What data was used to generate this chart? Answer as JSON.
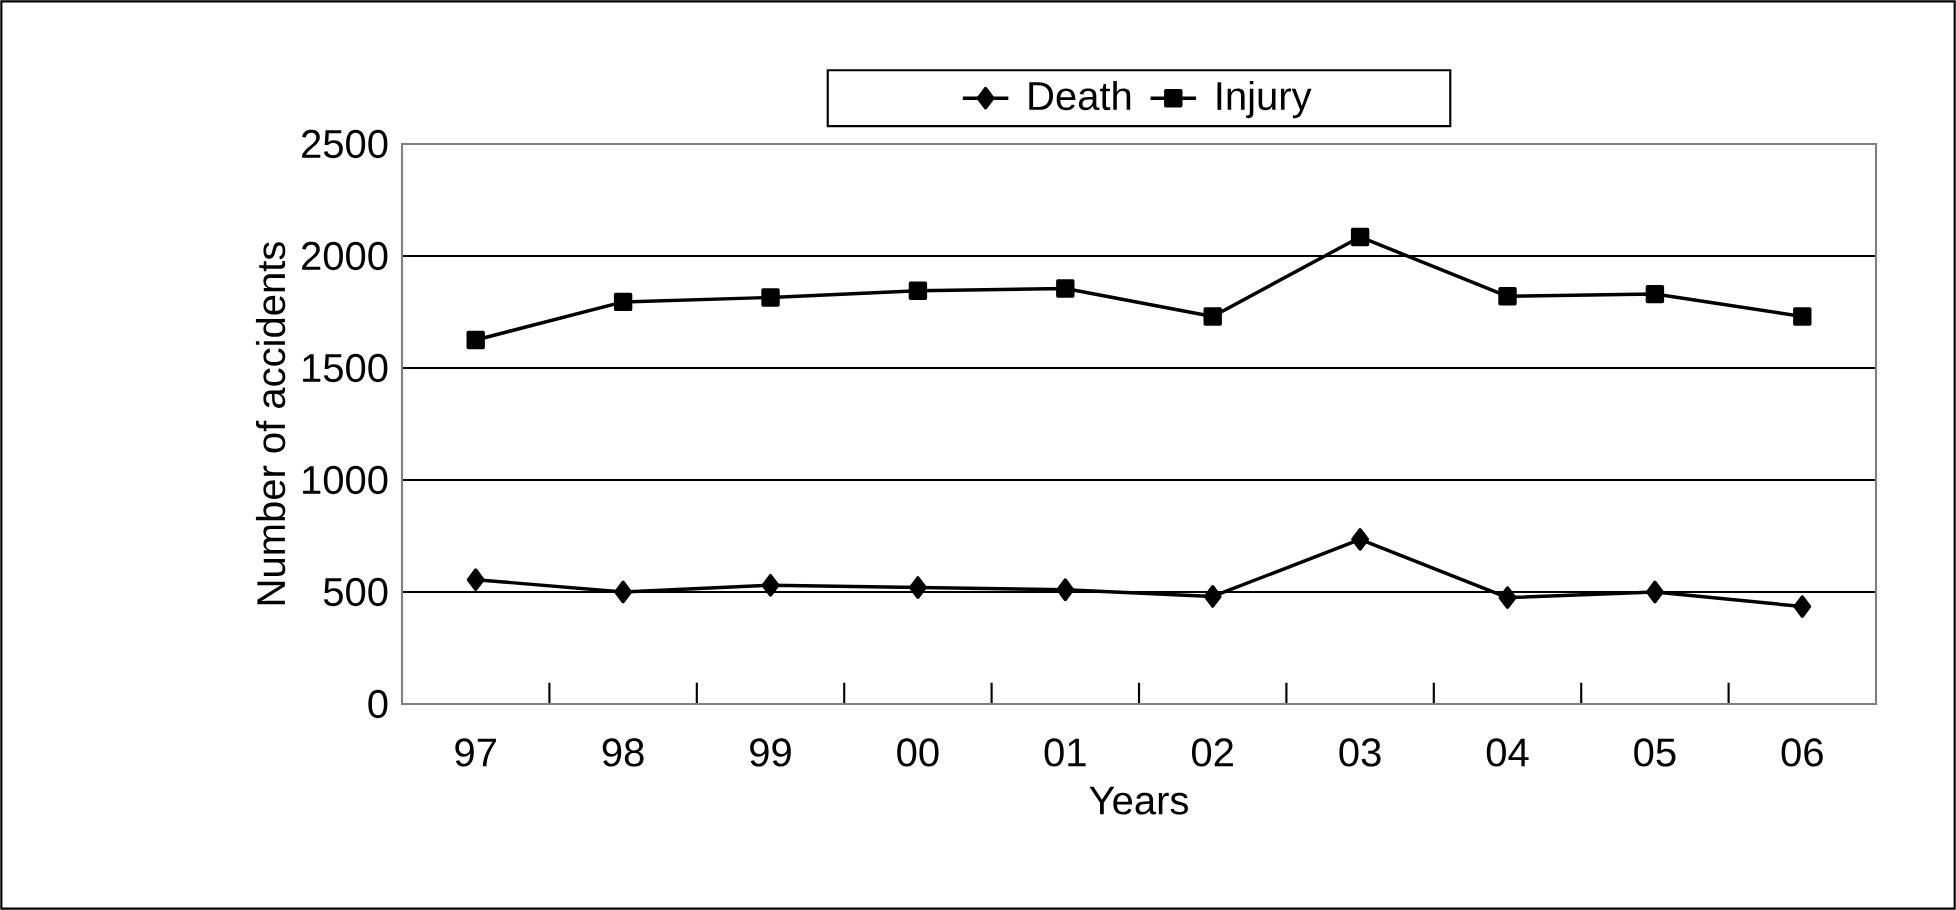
{
  "chart_data": {
    "type": "line",
    "xlabel": "Years",
    "ylabel": "Number of accidents",
    "categories": [
      "97",
      "98",
      "99",
      "00",
      "01",
      "02",
      "03",
      "04",
      "05",
      "06"
    ],
    "series": [
      {
        "name": "Death",
        "color": "#000000",
        "marker": "diamond",
        "values": [
          555,
          500,
          530,
          520,
          510,
          480,
          735,
          475,
          500,
          435
        ]
      },
      {
        "name": "Injury",
        "color": "#000000",
        "marker": "square",
        "values": [
          1625,
          1795,
          1815,
          1845,
          1855,
          1730,
          2085,
          1820,
          1830,
          1730
        ]
      }
    ],
    "ylim": [
      0,
      2500
    ],
    "yticks": [
      0,
      500,
      1000,
      1500,
      2000,
      2500
    ],
    "grid": "y",
    "legend": "top",
    "line_style": "solid"
  }
}
